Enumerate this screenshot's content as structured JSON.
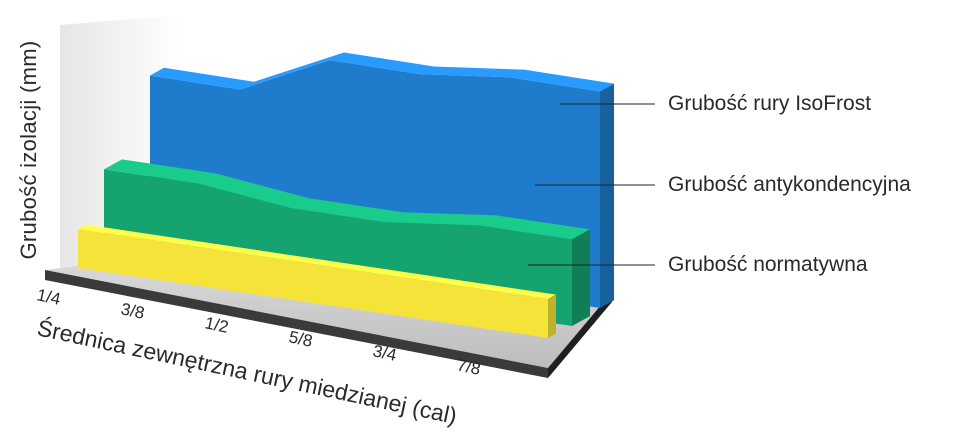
{
  "chart_data": {
    "type": "area",
    "categories": [
      "1/4",
      "3/8",
      "1/2",
      "5/8",
      "3/4",
      "7/8"
    ],
    "xlabel": "Średnica zewnętrzna rury miedzianej (cal)",
    "ylabel": "Grubość izolacji (mm)",
    "series": [
      {
        "name": "Grubość rury IsoFrost",
        "values": [
          75,
          75,
          95,
          95,
          100,
          100
        ],
        "color": "#1f7ccc"
      },
      {
        "name": "Grubość antykondencyjna",
        "values": [
          40,
          40,
          35,
          35,
          40,
          40
        ],
        "color": "#15a36f"
      },
      {
        "name": "Grubość normatywna",
        "values": [
          30,
          30,
          30,
          30,
          30,
          30
        ],
        "color": "#f6e33a"
      }
    ],
    "ylim": [
      0,
      120
    ],
    "grid": false,
    "legend": "right"
  }
}
